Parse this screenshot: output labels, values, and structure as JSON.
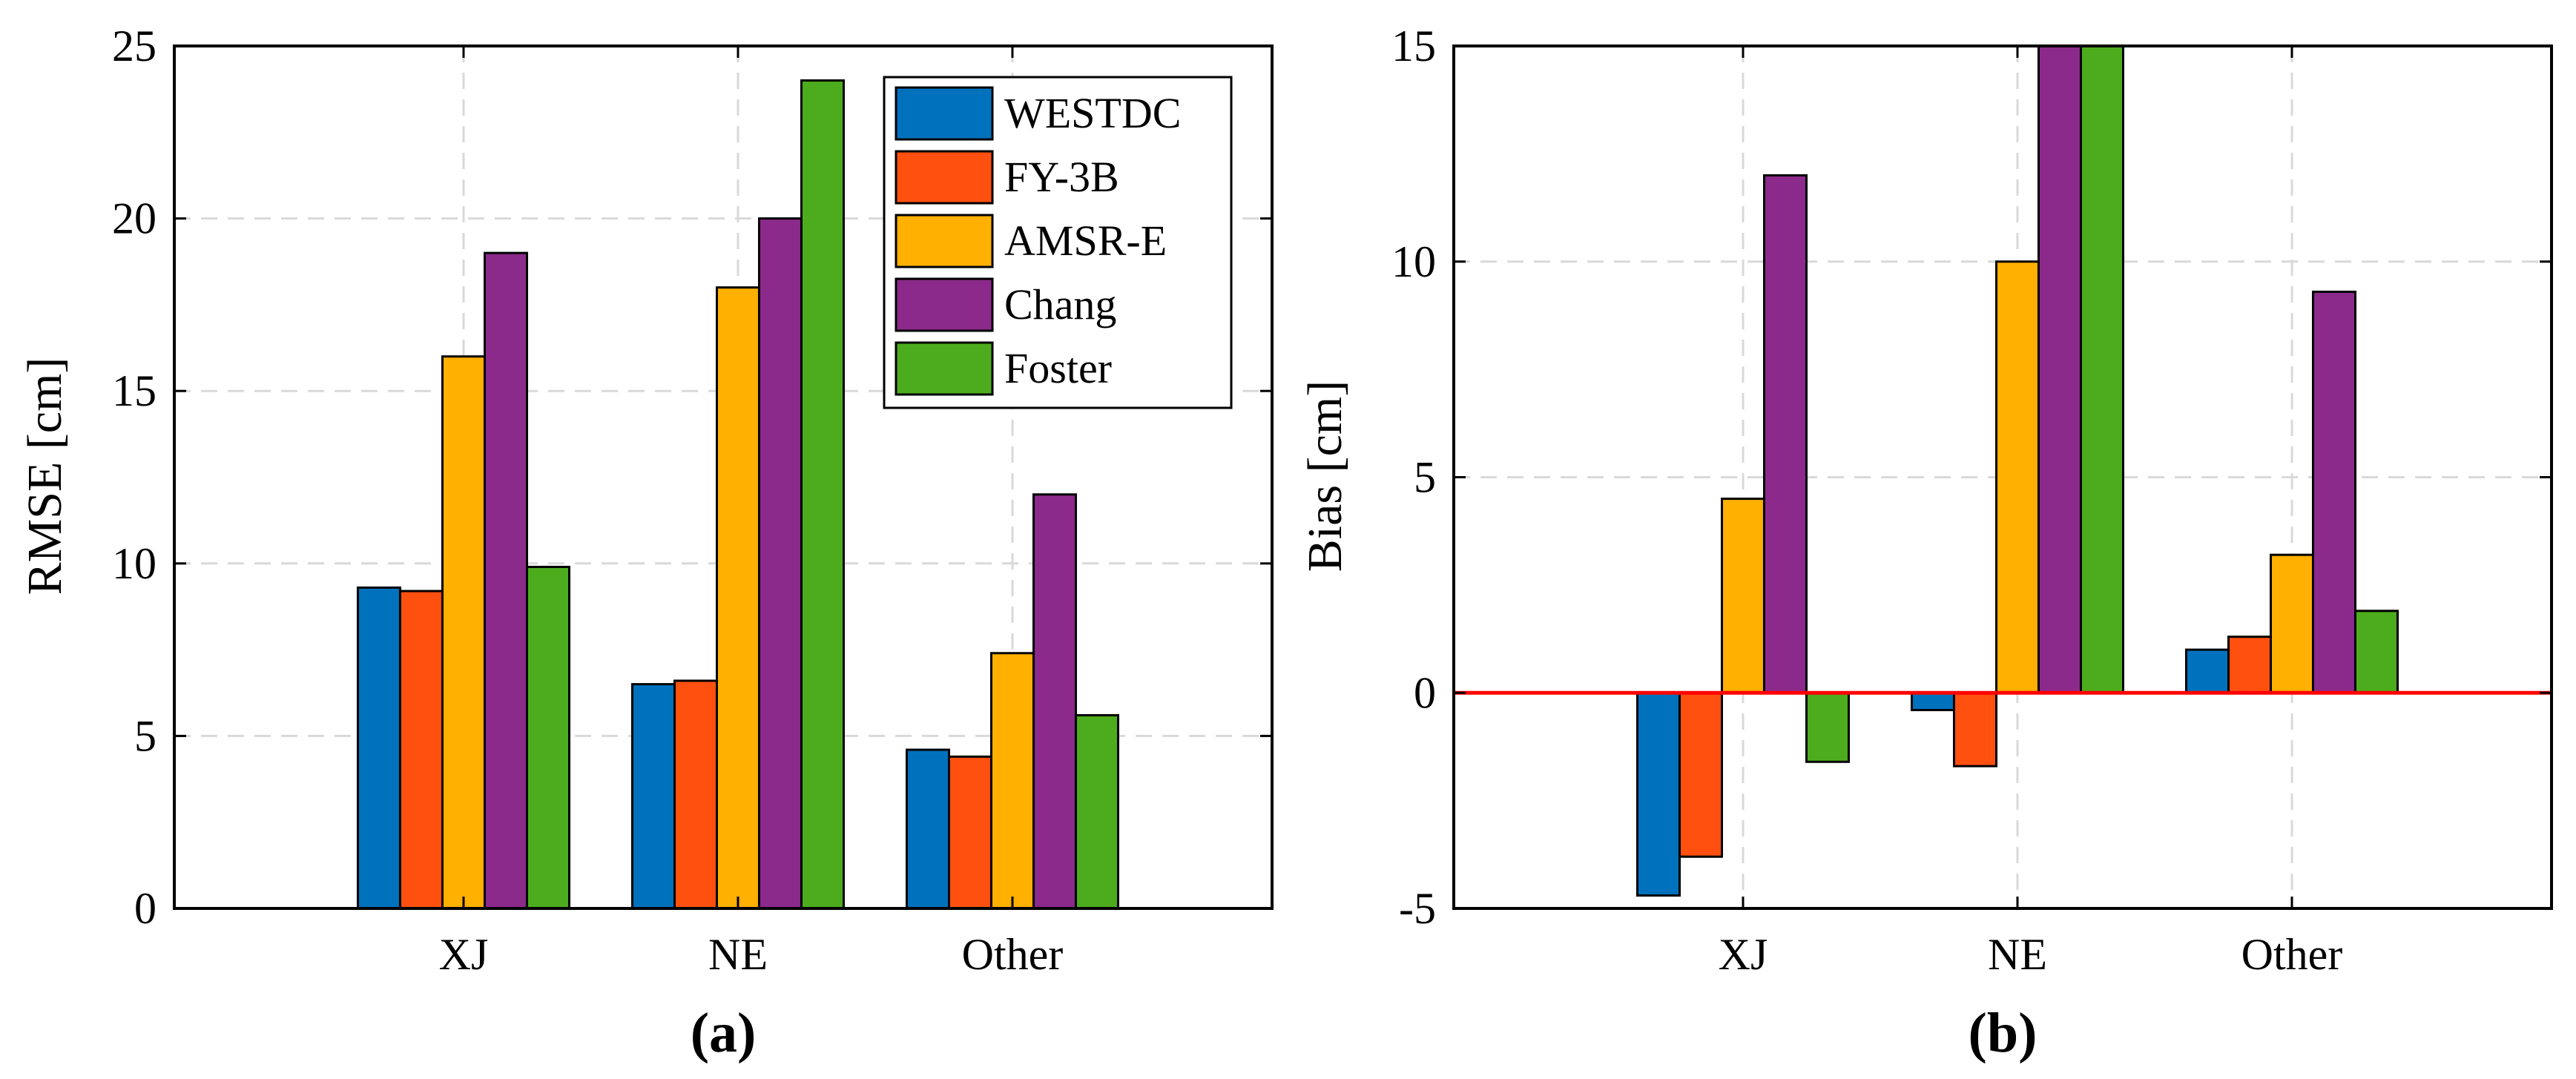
{
  "colors": {
    "WESTDC": "#0072bd",
    "FY-3B": "#ff5010",
    "AMSR-E": "#ffb000",
    "Chang": "#8c2a8c",
    "Foster": "#4dac1e",
    "zero_line": "#ff0000"
  },
  "chart_data": [
    {
      "type": "bar",
      "panel_label": "(a)",
      "categories": [
        "XJ",
        "NE",
        "Other"
      ],
      "ylabel": "RMSE [cm]",
      "ylim": [
        0,
        25
      ],
      "yticks": [
        0,
        5,
        10,
        15,
        20,
        25
      ],
      "grid": true,
      "legend_position": "top-right",
      "series": [
        {
          "name": "WESTDC",
          "values": [
            9.3,
            6.5,
            4.6
          ]
        },
        {
          "name": "FY-3B",
          "values": [
            9.2,
            6.6,
            4.4
          ]
        },
        {
          "name": "AMSR-E",
          "values": [
            16.0,
            18.0,
            7.4
          ]
        },
        {
          "name": "Chang",
          "values": [
            19.0,
            20.0,
            12.0
          ]
        },
        {
          "name": "Foster",
          "values": [
            9.9,
            24.0,
            5.6
          ]
        }
      ]
    },
    {
      "type": "bar",
      "panel_label": "(b)",
      "categories": [
        "XJ",
        "NE",
        "Other"
      ],
      "ylabel": "Bias [cm]",
      "ylim": [
        -5,
        15
      ],
      "yticks": [
        -5,
        0,
        5,
        10,
        15
      ],
      "grid": true,
      "reference_line": 0,
      "series": [
        {
          "name": "WESTDC",
          "values": [
            -4.7,
            -0.4,
            1.0
          ]
        },
        {
          "name": "FY-3B",
          "values": [
            -3.8,
            -1.7,
            1.3
          ]
        },
        {
          "name": "AMSR-E",
          "values": [
            4.5,
            10.0,
            3.2
          ]
        },
        {
          "name": "Chang",
          "values": [
            12.0,
            15.0,
            9.3
          ]
        },
        {
          "name": "Foster",
          "values": [
            -1.6,
            15.0,
            1.9
          ]
        }
      ]
    }
  ]
}
